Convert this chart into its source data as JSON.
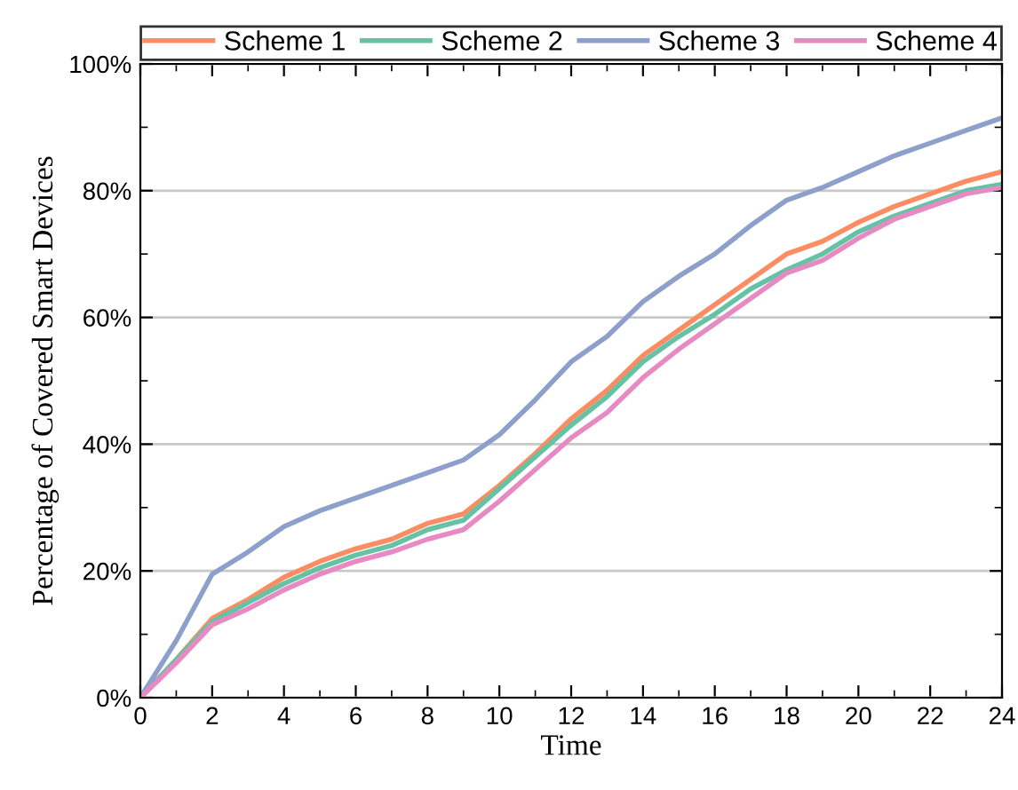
{
  "chart_data": {
    "type": "line",
    "xlabel": "Time",
    "ylabel": "Percentage of Covered Smart Devices",
    "x": [
      0,
      1,
      2,
      3,
      4,
      5,
      6,
      7,
      8,
      9,
      10,
      11,
      12,
      13,
      14,
      15,
      16,
      17,
      18,
      19,
      20,
      21,
      22,
      23,
      24
    ],
    "xlim": [
      0,
      24
    ],
    "xticks": [
      0,
      2,
      4,
      6,
      8,
      10,
      12,
      14,
      16,
      18,
      20,
      22,
      24
    ],
    "ylim": [
      0,
      100
    ],
    "yticks": [
      {
        "value": 0,
        "label": "0%"
      },
      {
        "value": 20,
        "label": "20%"
      },
      {
        "value": 40,
        "label": "40%"
      },
      {
        "value": 60,
        "label": "60%"
      },
      {
        "value": 80,
        "label": "80%"
      },
      {
        "value": 100,
        "label": "100%"
      }
    ],
    "grid": "y",
    "legend": "top",
    "marker": "none",
    "line_style": "solid",
    "series": [
      {
        "name": "Scheme 1",
        "color": "#fc8d62",
        "values": [
          0,
          6,
          12.5,
          15.5,
          19,
          21.5,
          23.5,
          25,
          27.5,
          29,
          33.5,
          38.5,
          44,
          48.5,
          54,
          58,
          62,
          66,
          70,
          72,
          75,
          77.5,
          79.5,
          81.5,
          83
        ]
      },
      {
        "name": "Scheme 2",
        "color": "#66c2a5",
        "values": [
          0,
          6,
          12,
          15,
          18,
          20.5,
          22.5,
          24,
          26.5,
          28,
          33,
          38,
          43,
          47.5,
          53,
          57,
          60.5,
          64.5,
          67.5,
          70,
          73.5,
          76,
          78,
          80,
          81
        ]
      },
      {
        "name": "Scheme 3",
        "color": "#8da0cb",
        "values": [
          0,
          9,
          19.5,
          23,
          27,
          29.5,
          31.5,
          33.5,
          35.5,
          37.5,
          41.5,
          47,
          53,
          57,
          62.5,
          66.5,
          70,
          74.5,
          78.5,
          80.5,
          83,
          85.5,
          87.5,
          89.5,
          91.5
        ]
      },
      {
        "name": "Scheme 4",
        "color": "#e78ac3",
        "values": [
          0,
          5.5,
          11.5,
          14,
          17,
          19.5,
          21.5,
          23,
          25,
          26.5,
          31,
          36,
          41,
          45,
          50.5,
          55,
          59,
          63,
          67,
          69,
          72.5,
          75.5,
          77.5,
          79.5,
          80.5
        ]
      }
    ]
  }
}
